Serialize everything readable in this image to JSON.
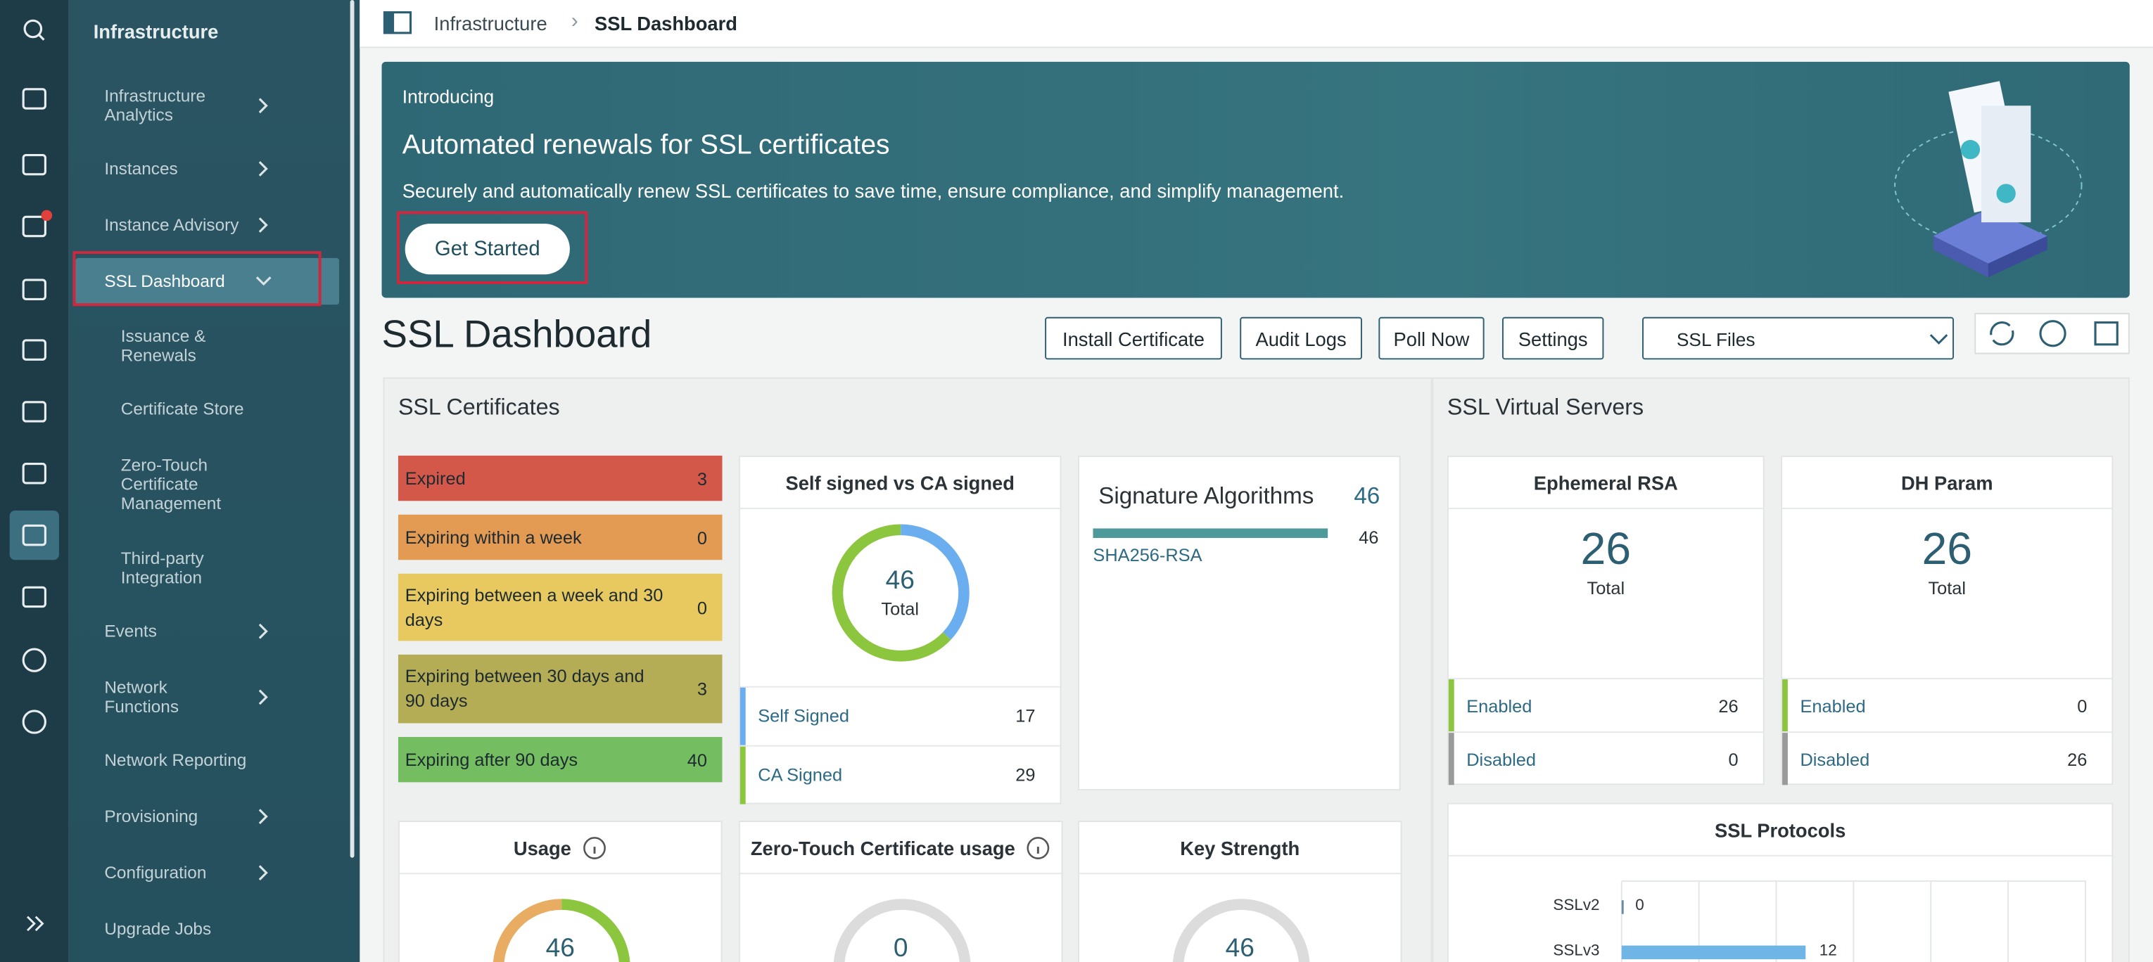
{
  "sidebar": {
    "title": "Infrastructure",
    "items": [
      "Infrastructure Analytics",
      "Instances",
      "Instance Advisory",
      "SSL Dashboard",
      "Issuance & Renewals",
      "Certificate Store",
      "Zero-Touch Certificate Management",
      "Third-party Integration",
      "Events",
      "Network Functions",
      "Network Reporting",
      "Provisioning",
      "Configuration",
      "Upgrade Jobs"
    ]
  },
  "breadcrumb": [
    "Infrastructure",
    "SSL Dashboard"
  ],
  "banner": {
    "eyebrow": "Introducing",
    "title": "Automated renewals for SSL certificates",
    "text": "Securely and automatically renew SSL certificates to save time, ensure compliance, and simplify management.",
    "button": "Get Started"
  },
  "page_title": "SSL Dashboard",
  "actions": [
    "Install Certificate",
    "Audit Logs",
    "Poll Now",
    "Settings"
  ],
  "dropdown": "SSL Files",
  "certificates": {
    "title": "SSL Certificates",
    "expiry": [
      {
        "label": "Expired",
        "value": 3
      },
      {
        "label": "Expiring within a week",
        "value": 0
      },
      {
        "label": "Expiring between a week and 30 days",
        "value": 0
      },
      {
        "label": "Expiring between 30 days and 90 days",
        "value": 3
      },
      {
        "label": "Expiring after 90 days",
        "value": 40
      }
    ],
    "signing": {
      "title": "Self signed vs CA signed",
      "total": 46,
      "total_label": "Total",
      "rows": [
        {
          "label": "Self Signed",
          "value": 17,
          "color": "#6aaef0"
        },
        {
          "label": "CA Signed",
          "value": 29,
          "color": "#8cc63f"
        }
      ]
    },
    "algorithms": {
      "title": "Signature Algorithms",
      "total": 46,
      "items": [
        {
          "label": "SHA256-RSA",
          "value": 46
        }
      ]
    },
    "usage": {
      "title": "Usage",
      "total": 46
    },
    "zero_touch": {
      "title": "Zero-Touch Certificate usage",
      "total": 0
    },
    "key_strength": {
      "title": "Key Strength",
      "total": 46
    }
  },
  "virtual_servers": {
    "title": "SSL Virtual Servers",
    "ephemeral_rsa": {
      "title": "Ephemeral RSA",
      "total": 26,
      "total_label": "Total",
      "rows": [
        {
          "label": "Enabled",
          "value": 26
        },
        {
          "label": "Disabled",
          "value": 0
        }
      ]
    },
    "dh_param": {
      "title": "DH Param",
      "total": 26,
      "total_label": "Total",
      "rows": [
        {
          "label": "Enabled",
          "value": 0
        },
        {
          "label": "Disabled",
          "value": 26
        }
      ]
    },
    "protocols": {
      "title": "SSL Protocols",
      "items": [
        {
          "label": "SSLv2",
          "value": 0
        },
        {
          "label": "SSLv3",
          "value": 12
        }
      ]
    }
  }
}
